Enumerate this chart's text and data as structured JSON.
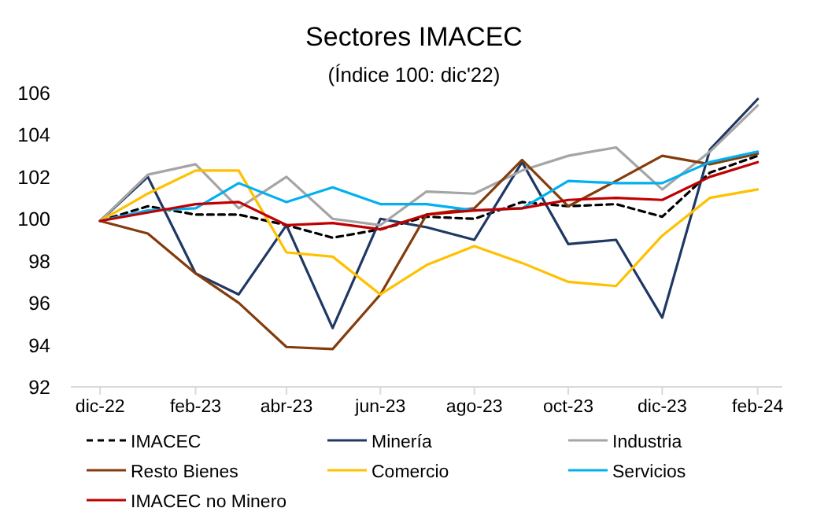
{
  "chart_data": {
    "type": "line",
    "title": "Sectores IMACEC",
    "subtitle": "(Índice 100: dic'22)",
    "x": [
      "2022-12",
      "2023-01",
      "2023-02",
      "2023-03",
      "2023-04",
      "2023-05",
      "2023-06",
      "2023-07",
      "2023-08",
      "2023-09",
      "2023-10",
      "2023-11",
      "2023-12",
      "2024-01",
      "2024-02"
    ],
    "xlim": [
      "2022-11-12",
      "2024-02-17"
    ],
    "xticks": [
      {
        "value": "2022-12",
        "label": "dic-22"
      },
      {
        "value": "2023-02",
        "label": "feb-23"
      },
      {
        "value": "2023-04",
        "label": "abr-23"
      },
      {
        "value": "2023-06",
        "label": "jun-23"
      },
      {
        "value": "2023-08",
        "label": "ago-23"
      },
      {
        "value": "2023-10",
        "label": "oct-23"
      },
      {
        "value": "2023-12",
        "label": "dic-23"
      },
      {
        "value": "2024-02",
        "label": "feb-24"
      }
    ],
    "ylim": [
      92,
      106
    ],
    "yticks": [
      92,
      94,
      96,
      98,
      100,
      102,
      104,
      106
    ],
    "grid": false,
    "legend": "bottom",
    "series": [
      {
        "name": "IMACEC",
        "color": "#000000",
        "line_style": "dashed",
        "values": [
          99.9,
          100.6,
          100.2,
          100.2,
          99.7,
          99.1,
          99.5,
          100.1,
          100.0,
          100.8,
          100.6,
          100.7,
          100.1,
          102.2,
          103.0
        ]
      },
      {
        "name": "Minería",
        "color": "#1f3864",
        "values": [
          99.9,
          102.0,
          97.4,
          96.4,
          99.7,
          94.8,
          100.0,
          99.6,
          99.0,
          102.7,
          98.8,
          99.0,
          95.3,
          103.3,
          105.7
        ]
      },
      {
        "name": "Industria",
        "color": "#a5a5a5",
        "values": [
          99.9,
          102.1,
          102.6,
          100.5,
          102.0,
          100.0,
          99.7,
          101.3,
          101.2,
          102.3,
          103.0,
          103.4,
          101.4,
          103.2,
          105.4
        ]
      },
      {
        "name": "Resto Bienes",
        "color": "#843c0c",
        "values": [
          99.9,
          99.3,
          97.4,
          96.0,
          93.9,
          93.8,
          96.4,
          100.2,
          100.5,
          102.8,
          100.6,
          101.8,
          103.0,
          102.6,
          103.1
        ]
      },
      {
        "name": "Comercio",
        "color": "#ffc000",
        "values": [
          99.9,
          101.2,
          102.3,
          102.3,
          98.4,
          98.2,
          96.4,
          97.8,
          98.7,
          97.9,
          97.0,
          96.8,
          99.2,
          101.0,
          101.4
        ]
      },
      {
        "name": "Servicios",
        "color": "#00b0f0",
        "values": [
          99.9,
          100.4,
          100.5,
          101.7,
          100.8,
          101.5,
          100.7,
          100.7,
          100.4,
          100.5,
          101.8,
          101.7,
          101.7,
          102.7,
          103.2
        ]
      },
      {
        "name": "IMACEC no Minero",
        "color": "#c00000",
        "values": [
          99.9,
          100.3,
          100.7,
          100.8,
          99.7,
          99.8,
          99.5,
          100.2,
          100.4,
          100.5,
          100.9,
          101.0,
          100.9,
          102.0,
          102.7
        ]
      }
    ]
  }
}
